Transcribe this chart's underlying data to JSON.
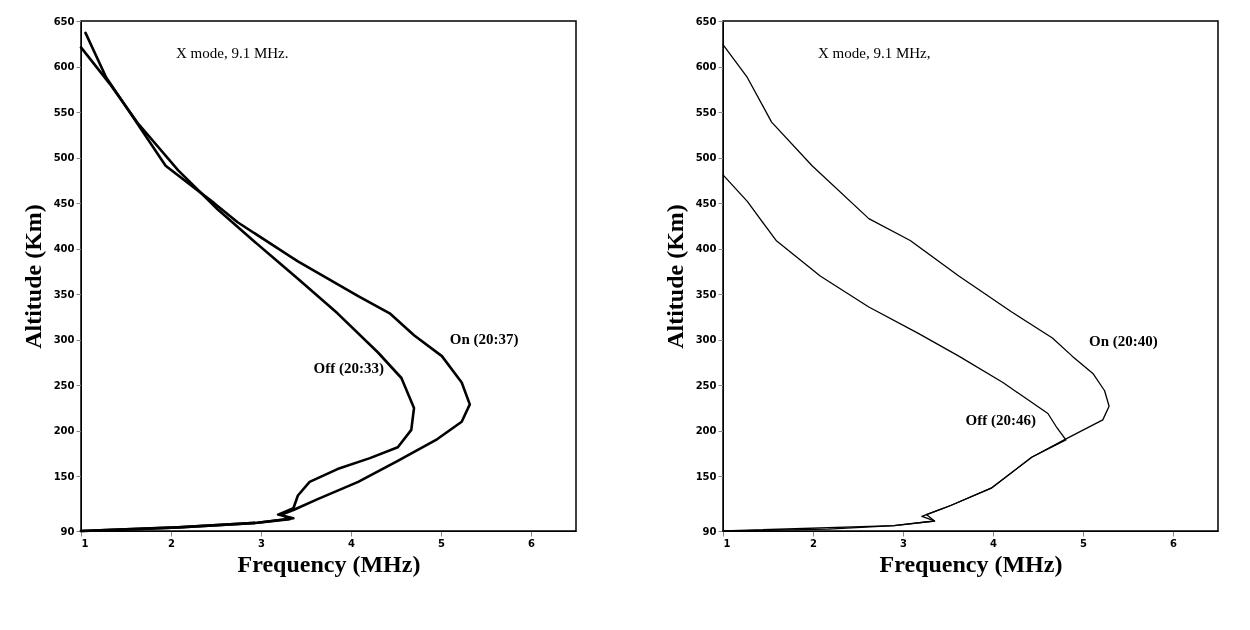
{
  "chart_data": [
    {
      "type": "line",
      "xlabel": "Frequency (MHz)",
      "ylabel": "Altitude (Km)",
      "xlim": [
        1,
        6.5
      ],
      "ylim": [
        90,
        650
      ],
      "xticks": [
        1,
        2,
        3,
        4,
        5,
        6
      ],
      "yticks": [
        90,
        150,
        200,
        250,
        300,
        350,
        400,
        450,
        500,
        550,
        600,
        650
      ],
      "grid": false,
      "marker": "none",
      "line_style": "solid",
      "annotations": [
        "X mode, 9.1 MHz."
      ],
      "series": [
        {
          "name": "On (20:37)",
          "color": "#000000",
          "x": [
            1.05,
            1.28,
            1.54,
            1.94,
            2.48,
            2.74,
            3.41,
            4.08,
            4.43,
            4.7,
            5.01,
            5.23,
            5.32,
            5.23,
            4.96,
            4.52,
            4.08,
            3.63,
            3.36,
            3.23,
            3.32,
            2.96,
            2.08,
            1.28,
            1.0
          ],
          "values": [
            637,
            588,
            550,
            491,
            450,
            429,
            386,
            348,
            329,
            305,
            282,
            253,
            229,
            210,
            191,
            167,
            144,
            125,
            113,
            108,
            103,
            99,
            94,
            91,
            90
          ]
        },
        {
          "name": "Off (20:33)",
          "color": "#000000",
          "x": [
            1.0,
            1.32,
            1.63,
            2.08,
            2.52,
            2.96,
            3.41,
            3.85,
            4.3,
            4.56,
            4.7,
            4.67,
            4.52,
            4.21,
            3.85,
            3.54,
            3.41,
            3.36,
            3.19,
            3.36,
            2.96,
            2.08,
            1.28,
            1.0
          ],
          "values": [
            621,
            581,
            538,
            486,
            443,
            405,
            367,
            329,
            286,
            258,
            225,
            201,
            182,
            170,
            158,
            144,
            129,
            115,
            108,
            104,
            99,
            94,
            91,
            90
          ]
        }
      ]
    },
    {
      "type": "line",
      "xlabel": "Frequency (MHz)",
      "ylabel": "Altitude (Km)",
      "xlim": [
        1,
        6.5
      ],
      "ylim": [
        90,
        650
      ],
      "xticks": [
        1,
        2,
        3,
        4,
        5,
        6
      ],
      "yticks": [
        90,
        150,
        200,
        250,
        300,
        350,
        400,
        450,
        500,
        550,
        600,
        650
      ],
      "grid": false,
      "marker": "none",
      "line_style": "solid",
      "annotations": [
        "X mode, 9.1 MHz,"
      ],
      "series": [
        {
          "name": "On  (20:40)",
          "color": "#000000",
          "x": [
            1.0,
            1.27,
            1.54,
            1.99,
            2.62,
            3.08,
            3.62,
            4.2,
            4.66,
            4.88,
            5.11,
            5.24,
            5.29,
            5.22,
            4.79,
            4.43,
            3.98,
            3.53,
            3.26,
            3.35,
            2.9,
            2.17,
            1.0
          ],
          "values": [
            624,
            588,
            539,
            491,
            433,
            409,
            370,
            331,
            302,
            282,
            263,
            244,
            227,
            212,
            190,
            171,
            137,
            118,
            108,
            101,
            96,
            92,
            90
          ]
        },
        {
          "name": "Off (20:46)",
          "color": "#000000",
          "x": [
            1.0,
            1.27,
            1.59,
            2.08,
            2.62,
            3.17,
            3.62,
            4.11,
            4.61,
            4.7,
            4.81,
            4.43,
            3.98,
            3.53,
            3.21,
            3.35,
            2.9,
            1.0
          ],
          "values": [
            481,
            452,
            409,
            370,
            336,
            307,
            282,
            253,
            219,
            205,
            190,
            171,
            137,
            118,
            106,
            101,
            96,
            90
          ]
        }
      ]
    }
  ]
}
